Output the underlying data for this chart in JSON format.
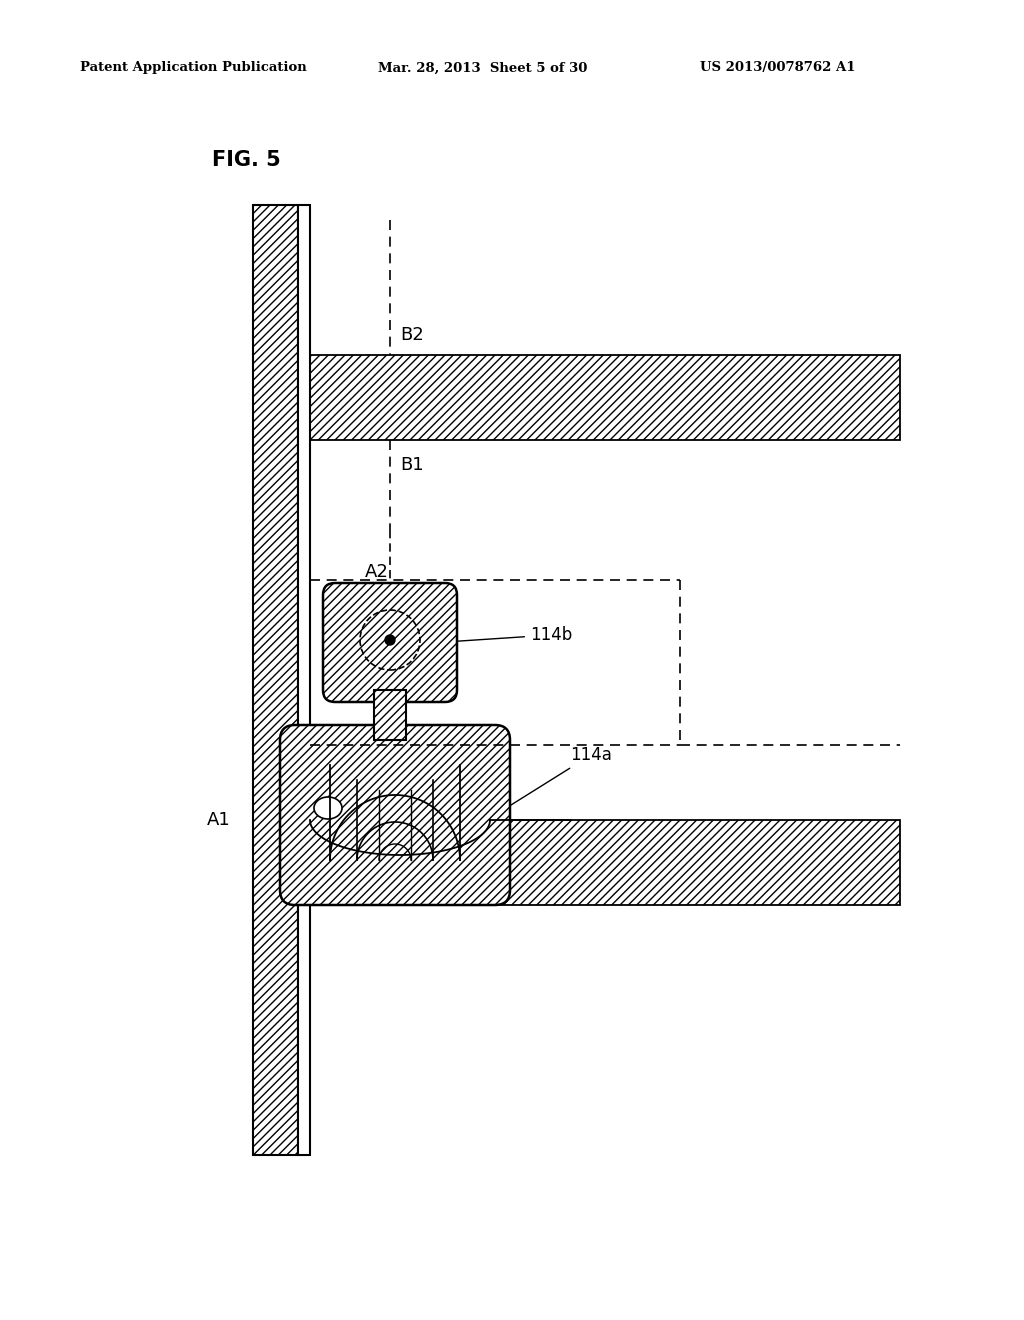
{
  "bg_color": "#ffffff",
  "header_left": "Patent Application Publication",
  "header_mid": "Mar. 28, 2013  Sheet 5 of 30",
  "header_right": "US 2013/0078762 A1",
  "fig_label": "FIG. 5",
  "hatch_color": "#555555",
  "line_color": "#000000"
}
